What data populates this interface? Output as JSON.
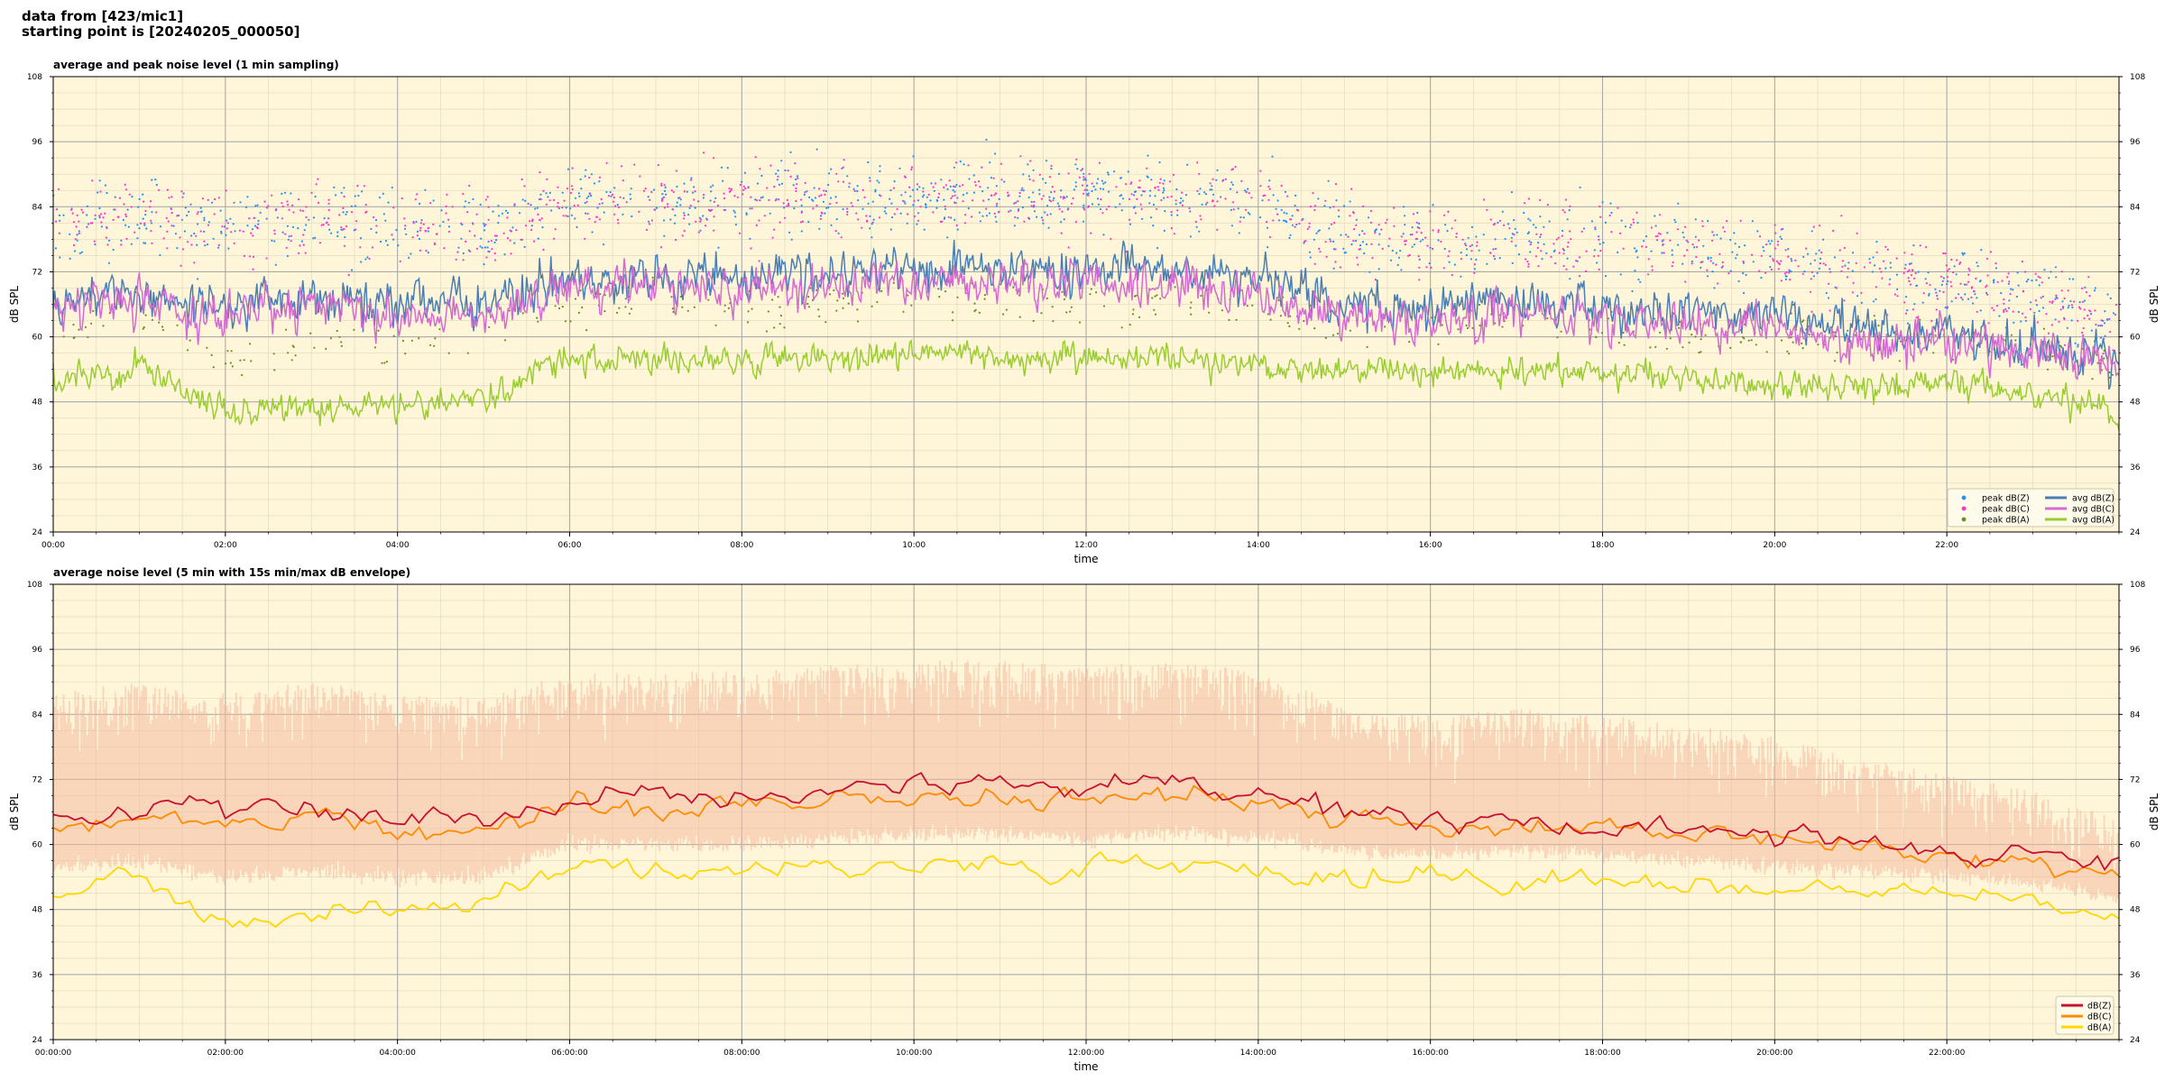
{
  "header": {
    "line1": "data from [423/mic1]",
    "line2": "starting point is [20240205_000050]"
  },
  "colors": {
    "plot_background": "#fff6d9",
    "grid_major": "#aaaaaa",
    "grid_minor": "#e6dcc0",
    "avg_z": "#4a7fb5",
    "avg_c": "#d46ad2",
    "avg_a": "#9acd32",
    "peak_z": "#1e90ff",
    "peak_c": "#ff33cc",
    "peak_a": "#6b8e23",
    "db_z": "#c8102e",
    "db_c": "#ff8c00",
    "db_a": "#ffd700",
    "envelope": "#f4b9a0"
  },
  "chart_data": [
    {
      "type": "line",
      "title": "average and peak noise level (1 min sampling)",
      "xlabel": "time",
      "ylabel": "dB SPL",
      "ylim": [
        24,
        108
      ],
      "xlim_hours": [
        0,
        24
      ],
      "yticks": [
        "24",
        "36",
        "48",
        "60",
        "72",
        "84",
        "96",
        "108"
      ],
      "xticks": [
        "00:00",
        "02:00",
        "04:00",
        "06:00",
        "08:00",
        "10:00",
        "12:00",
        "14:00",
        "16:00",
        "18:00",
        "20:00",
        "22:00"
      ],
      "grid": true,
      "legend_position": "bottom-right",
      "legend": [
        {
          "label": "peak dB(Z)",
          "kind": "marker",
          "color_key": "peak_z"
        },
        {
          "label": "peak dB(C)",
          "kind": "marker",
          "color_key": "peak_c"
        },
        {
          "label": "peak dB(A)",
          "kind": "marker",
          "color_key": "peak_a"
        },
        {
          "label": "avg dB(Z)",
          "kind": "line",
          "color_key": "avg_z"
        },
        {
          "label": "avg dB(C)",
          "kind": "line",
          "color_key": "avg_c"
        },
        {
          "label": "avg dB(A)",
          "kind": "line",
          "color_key": "avg_a"
        }
      ],
      "series": [
        {
          "name": "avg dB(Z)",
          "color_key": "avg_z",
          "x_hours": [
            0,
            1,
            2,
            3,
            4,
            5,
            6,
            7,
            8,
            9,
            10,
            11,
            12,
            13,
            14,
            15,
            16,
            17,
            18,
            19,
            20,
            21,
            22,
            23,
            24
          ],
          "values": [
            66,
            68,
            66,
            68,
            66,
            66,
            71,
            71,
            71,
            71,
            72,
            72,
            72,
            72,
            70,
            66,
            65,
            66,
            65,
            64,
            64,
            61,
            60,
            58,
            55
          ]
        },
        {
          "name": "avg dB(C)",
          "color_key": "avg_c",
          "x_hours": [
            0,
            1,
            2,
            3,
            4,
            5,
            6,
            7,
            8,
            9,
            10,
            11,
            12,
            13,
            14,
            15,
            16,
            17,
            18,
            19,
            20,
            21,
            22,
            23,
            24
          ],
          "values": [
            64,
            66,
            64,
            66,
            64,
            64,
            69,
            69,
            69,
            69,
            70,
            70,
            70,
            70,
            68,
            64,
            63,
            64,
            63,
            62,
            62,
            59,
            59,
            57,
            54
          ]
        },
        {
          "name": "avg dB(A)",
          "color_key": "avg_a",
          "x_hours": [
            0,
            1,
            2,
            3,
            4,
            5,
            6,
            7,
            8,
            9,
            10,
            11,
            12,
            13,
            14,
            15,
            16,
            17,
            18,
            19,
            20,
            21,
            22,
            23,
            24
          ],
          "values": [
            52,
            54,
            46,
            47,
            47,
            49,
            56,
            56,
            55,
            56,
            57,
            56,
            56,
            56,
            55,
            54,
            53,
            54,
            53,
            52,
            51,
            51,
            52,
            50,
            46
          ]
        },
        {
          "name": "peak dB(Z)",
          "color_key": "peak_z",
          "x_hours": [
            0,
            1,
            2,
            3,
            4,
            5,
            6,
            7,
            8,
            9,
            10,
            11,
            12,
            13,
            14,
            15,
            16,
            17,
            18,
            19,
            20,
            21,
            22,
            23,
            24
          ],
          "values": [
            80,
            82,
            80,
            82,
            80,
            80,
            85,
            85,
            85,
            85,
            86,
            86,
            86,
            86,
            84,
            79,
            77,
            78,
            77,
            76,
            75,
            72,
            70,
            67,
            63
          ]
        },
        {
          "name": "peak dB(C)",
          "color_key": "peak_c",
          "x_hours": [
            0,
            1,
            2,
            3,
            4,
            5,
            6,
            7,
            8,
            9,
            10,
            11,
            12,
            13,
            14,
            15,
            16,
            17,
            18,
            19,
            20,
            21,
            22,
            23,
            24
          ],
          "values": [
            80,
            82,
            80,
            82,
            80,
            80,
            85,
            85,
            85,
            85,
            86,
            86,
            86,
            86,
            84,
            79,
            77,
            78,
            77,
            76,
            75,
            72,
            70,
            67,
            63
          ]
        },
        {
          "name": "peak dB(A)",
          "color_key": "peak_a",
          "x_hours": [
            0,
            1,
            2,
            3,
            4,
            5,
            6,
            7,
            8,
            9,
            10,
            11,
            12,
            13,
            14,
            15,
            16,
            17,
            18,
            19,
            20,
            21,
            22,
            23,
            24
          ],
          "values": [
            62,
            64,
            57,
            58,
            58,
            60,
            66,
            66,
            65,
            66,
            67,
            66,
            66,
            66,
            65,
            63,
            62,
            63,
            62,
            61,
            60,
            60,
            60,
            58,
            54
          ]
        }
      ]
    },
    {
      "type": "line",
      "title": "average noise level (5 min with 15s min/max dB envelope)",
      "xlabel": "time",
      "ylabel": "dB SPL",
      "ylim": [
        24,
        108
      ],
      "xlim_hours": [
        0,
        24
      ],
      "yticks": [
        "24",
        "36",
        "48",
        "60",
        "72",
        "84",
        "96",
        "108"
      ],
      "xticks": [
        "00:00:00",
        "02:00:00",
        "04:00:00",
        "06:00:00",
        "08:00:00",
        "10:00:00",
        "12:00:00",
        "14:00:00",
        "16:00:00",
        "18:00:00",
        "20:00:00",
        "22:00:00"
      ],
      "grid": true,
      "legend_position": "bottom-right",
      "legend": [
        {
          "label": "dB(Z)",
          "kind": "line",
          "color_key": "db_z"
        },
        {
          "label": "dB(C)",
          "kind": "line",
          "color_key": "db_c"
        },
        {
          "label": "dB(A)",
          "kind": "line",
          "color_key": "db_a"
        }
      ],
      "series": [
        {
          "name": "dB(Z)",
          "color_key": "db_z",
          "x_hours": [
            0,
            1,
            2,
            3,
            4,
            5,
            6,
            7,
            8,
            9,
            10,
            11,
            12,
            13,
            14,
            15,
            16,
            17,
            18,
            19,
            20,
            21,
            22,
            23,
            24
          ],
          "values": [
            65,
            67,
            66,
            67,
            65,
            64,
            69,
            69,
            69,
            70,
            71,
            71,
            70,
            71,
            70,
            66,
            64,
            65,
            64,
            63,
            62,
            60,
            59,
            58,
            55
          ]
        },
        {
          "name": "dB(C)",
          "color_key": "db_c",
          "x_hours": [
            0,
            1,
            2,
            3,
            4,
            5,
            6,
            7,
            8,
            9,
            10,
            11,
            12,
            13,
            14,
            15,
            16,
            17,
            18,
            19,
            20,
            21,
            22,
            23,
            24
          ],
          "values": [
            62,
            65,
            64,
            65,
            63,
            62,
            67,
            67,
            67,
            68,
            69,
            69,
            68,
            69,
            68,
            65,
            63,
            64,
            63,
            62,
            61,
            59,
            58,
            57,
            54
          ]
        },
        {
          "name": "dB(A)",
          "color_key": "db_a",
          "x_hours": [
            0,
            1,
            2,
            3,
            4,
            5,
            6,
            7,
            8,
            9,
            10,
            11,
            12,
            13,
            14,
            15,
            16,
            17,
            18,
            19,
            20,
            21,
            22,
            23,
            24
          ],
          "values": [
            51,
            55,
            46,
            47,
            48,
            50,
            55,
            56,
            55,
            56,
            57,
            56,
            56,
            56,
            55,
            54,
            54,
            54,
            54,
            53,
            52,
            52,
            51,
            49,
            46
          ]
        }
      ],
      "envelope": {
        "color_key": "envelope",
        "x_hours": [
          0,
          1,
          2,
          3,
          4,
          5,
          6,
          7,
          8,
          9,
          10,
          11,
          12,
          13,
          14,
          15,
          16,
          17,
          18,
          19,
          20,
          21,
          22,
          23,
          24
        ],
        "min": [
          56,
          57,
          54,
          55,
          54,
          54,
          60,
          60,
          60,
          61,
          62,
          62,
          61,
          62,
          61,
          59,
          58,
          59,
          58,
          57,
          56,
          55,
          54,
          53,
          50
        ],
        "max": [
          88,
          90,
          88,
          90,
          88,
          87,
          92,
          92,
          92,
          93,
          94,
          94,
          93,
          94,
          92,
          86,
          84,
          85,
          84,
          82,
          80,
          76,
          73,
          70,
          65
        ]
      }
    }
  ]
}
